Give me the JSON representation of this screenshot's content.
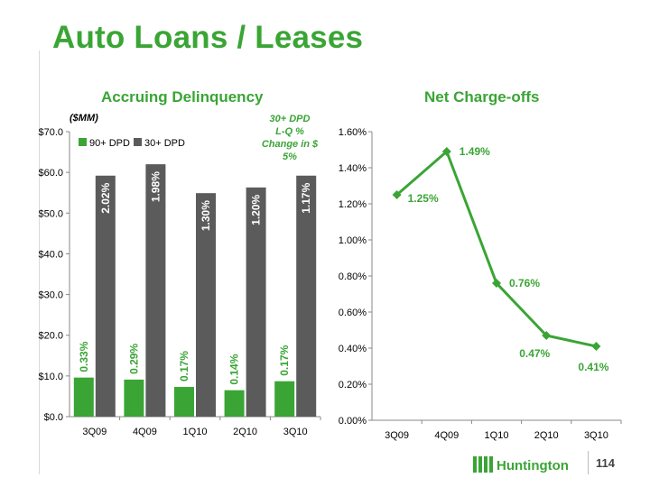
{
  "page": {
    "title": "Auto Loans / Leases",
    "page_number": "114",
    "logo_text": "Huntington",
    "units_label": "($MM)",
    "callout": [
      "30+ DPD",
      "L-Q %",
      "Change in $",
      "5%"
    ]
  },
  "colors": {
    "green": "#3aa535",
    "dark_bar": "#5b5b5b",
    "text": "#000000"
  },
  "chart_data": [
    {
      "type": "bar",
      "title": "Accruing Delinquency",
      "categories": [
        "3Q09",
        "4Q09",
        "1Q10",
        "2Q10",
        "3Q10"
      ],
      "series": [
        {
          "name": "90+ DPD",
          "values": [
            9.6,
            9.1,
            7.3,
            6.5,
            8.7
          ],
          "labels": [
            "0.33%",
            "0.29%",
            "0.17%",
            "0.14%",
            "0.17%"
          ]
        },
        {
          "name": "30+ DPD",
          "values": [
            59.2,
            62.0,
            54.9,
            56.3,
            59.2
          ],
          "labels": [
            "2.02%",
            "1.98%",
            "1.30%",
            "1.20%",
            "1.17%"
          ]
        }
      ],
      "ylim": [
        0,
        70
      ],
      "yticks": [
        0,
        10,
        20,
        30,
        40,
        50,
        60,
        70
      ],
      "ytick_labels": [
        "$0.0",
        "$10.0",
        "$20.0",
        "$30.0",
        "$40.0",
        "$50.0",
        "$60.0",
        "$70.0"
      ],
      "legend": "top-left"
    },
    {
      "type": "line",
      "title": "Net Charge-offs",
      "categories": [
        "3Q09",
        "4Q09",
        "1Q10",
        "2Q10",
        "3Q10"
      ],
      "series": [
        {
          "values": [
            1.25,
            1.49,
            0.76,
            0.47,
            0.41
          ],
          "labels": [
            "1.25%",
            "1.49%",
            "0.76%",
            "0.47%",
            "0.41%"
          ]
        }
      ],
      "ylim": [
        0,
        1.6
      ],
      "yticks": [
        0,
        0.2,
        0.4,
        0.6,
        0.8,
        1.0,
        1.2,
        1.4,
        1.6
      ],
      "ytick_labels": [
        "0.00%",
        "0.20%",
        "0.40%",
        "0.60%",
        "0.80%",
        "1.00%",
        "1.20%",
        "1.40%",
        "1.60%"
      ]
    }
  ]
}
